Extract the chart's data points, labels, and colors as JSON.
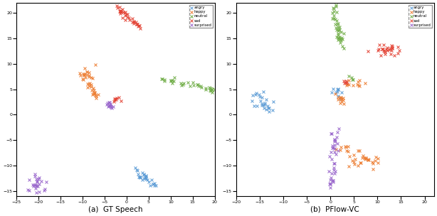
{
  "title_a": "(a)  GT Speech",
  "title_b": "(b)  PFlow-VC",
  "colors": {
    "angry": "#5b9bd5",
    "happy": "#ed7d31",
    "neutral": "#70ad47",
    "sad": "#e34234",
    "surprised": "#9966cc"
  },
  "figsize": [
    6.14,
    3.04
  ],
  "dpi": 100,
  "ms": 2.5,
  "mew": 0.7,
  "legend_fontsize": 3.8,
  "tick_labelsize": 4.5,
  "xlabel_fontsize": 7.5,
  "plot_a": {
    "xlim": [
      -25,
      20
    ],
    "ylim": [
      -16,
      22
    ]
  },
  "plot_b": {
    "xlim": [
      -20,
      22
    ],
    "ylim": [
      -16,
      22
    ]
  }
}
